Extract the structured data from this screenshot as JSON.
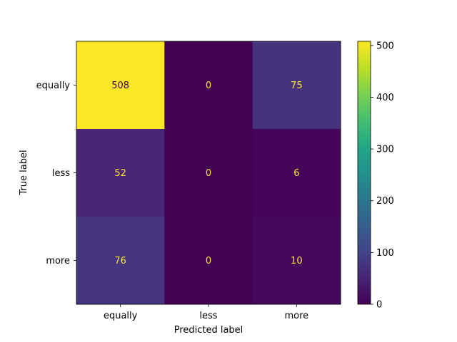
{
  "chart_data": {
    "type": "heatmap",
    "title": "",
    "xlabel": "Predicted label",
    "ylabel": "True label",
    "x_categories": [
      "equally",
      "less",
      "more"
    ],
    "y_categories": [
      "equally",
      "less",
      "more"
    ],
    "values": [
      [
        508,
        0,
        75
      ],
      [
        52,
        0,
        6
      ],
      [
        76,
        0,
        10
      ]
    ],
    "colormap": "viridis",
    "vmin": 0,
    "vmax": 508,
    "colorbar_ticks": [
      0,
      100,
      200,
      300,
      400,
      500
    ],
    "text_color_dark_cells": "#fde725",
    "text_color_light_cells": "#440154"
  }
}
